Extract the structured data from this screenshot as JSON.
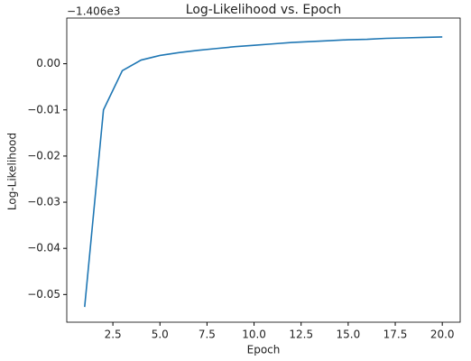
{
  "chart_data": {
    "type": "line",
    "title": "Log-Likelihood vs. Epoch",
    "x_label": "Epoch",
    "y_label": "Log-Likelihood",
    "y_offset_label": "−1.406e3",
    "x": [
      1,
      2,
      3,
      4,
      5,
      6,
      7,
      8,
      9,
      10,
      11,
      12,
      13,
      14,
      15,
      16,
      17,
      18,
      19,
      20
    ],
    "series": [
      {
        "name": "Log-Likelihood",
        "color": "#1f77b4",
        "values": [
          -0.0527,
          -0.01,
          -0.0015,
          0.0008,
          0.0018,
          0.0024,
          0.0029,
          0.0033,
          0.0037,
          0.004,
          0.0043,
          0.0046,
          0.0048,
          0.005,
          0.0052,
          0.0053,
          0.0055,
          0.0056,
          0.0057,
          0.0058
        ]
      }
    ],
    "xlim": [
      0.05,
      20.95
    ],
    "ylim": [
      -0.056,
      0.0099
    ],
    "xticks": [
      2.5,
      {
        "value": 5,
        "label": "5.0"
      },
      7.5,
      {
        "value": 10,
        "label": "10.0"
      },
      12.5,
      {
        "value": 15,
        "label": "15.0"
      },
      17.5,
      {
        "value": 20,
        "label": "20.0"
      }
    ],
    "yticks": [
      {
        "value": -0.05,
        "label": "−0.05"
      },
      {
        "value": -0.04,
        "label": "−0.04"
      },
      {
        "value": -0.03,
        "label": "−0.03"
      },
      {
        "value": -0.02,
        "label": "−0.02"
      },
      {
        "value": -0.01,
        "label": "−0.01"
      },
      {
        "value": 0,
        "label": "0.00"
      }
    ],
    "grid": false
  }
}
